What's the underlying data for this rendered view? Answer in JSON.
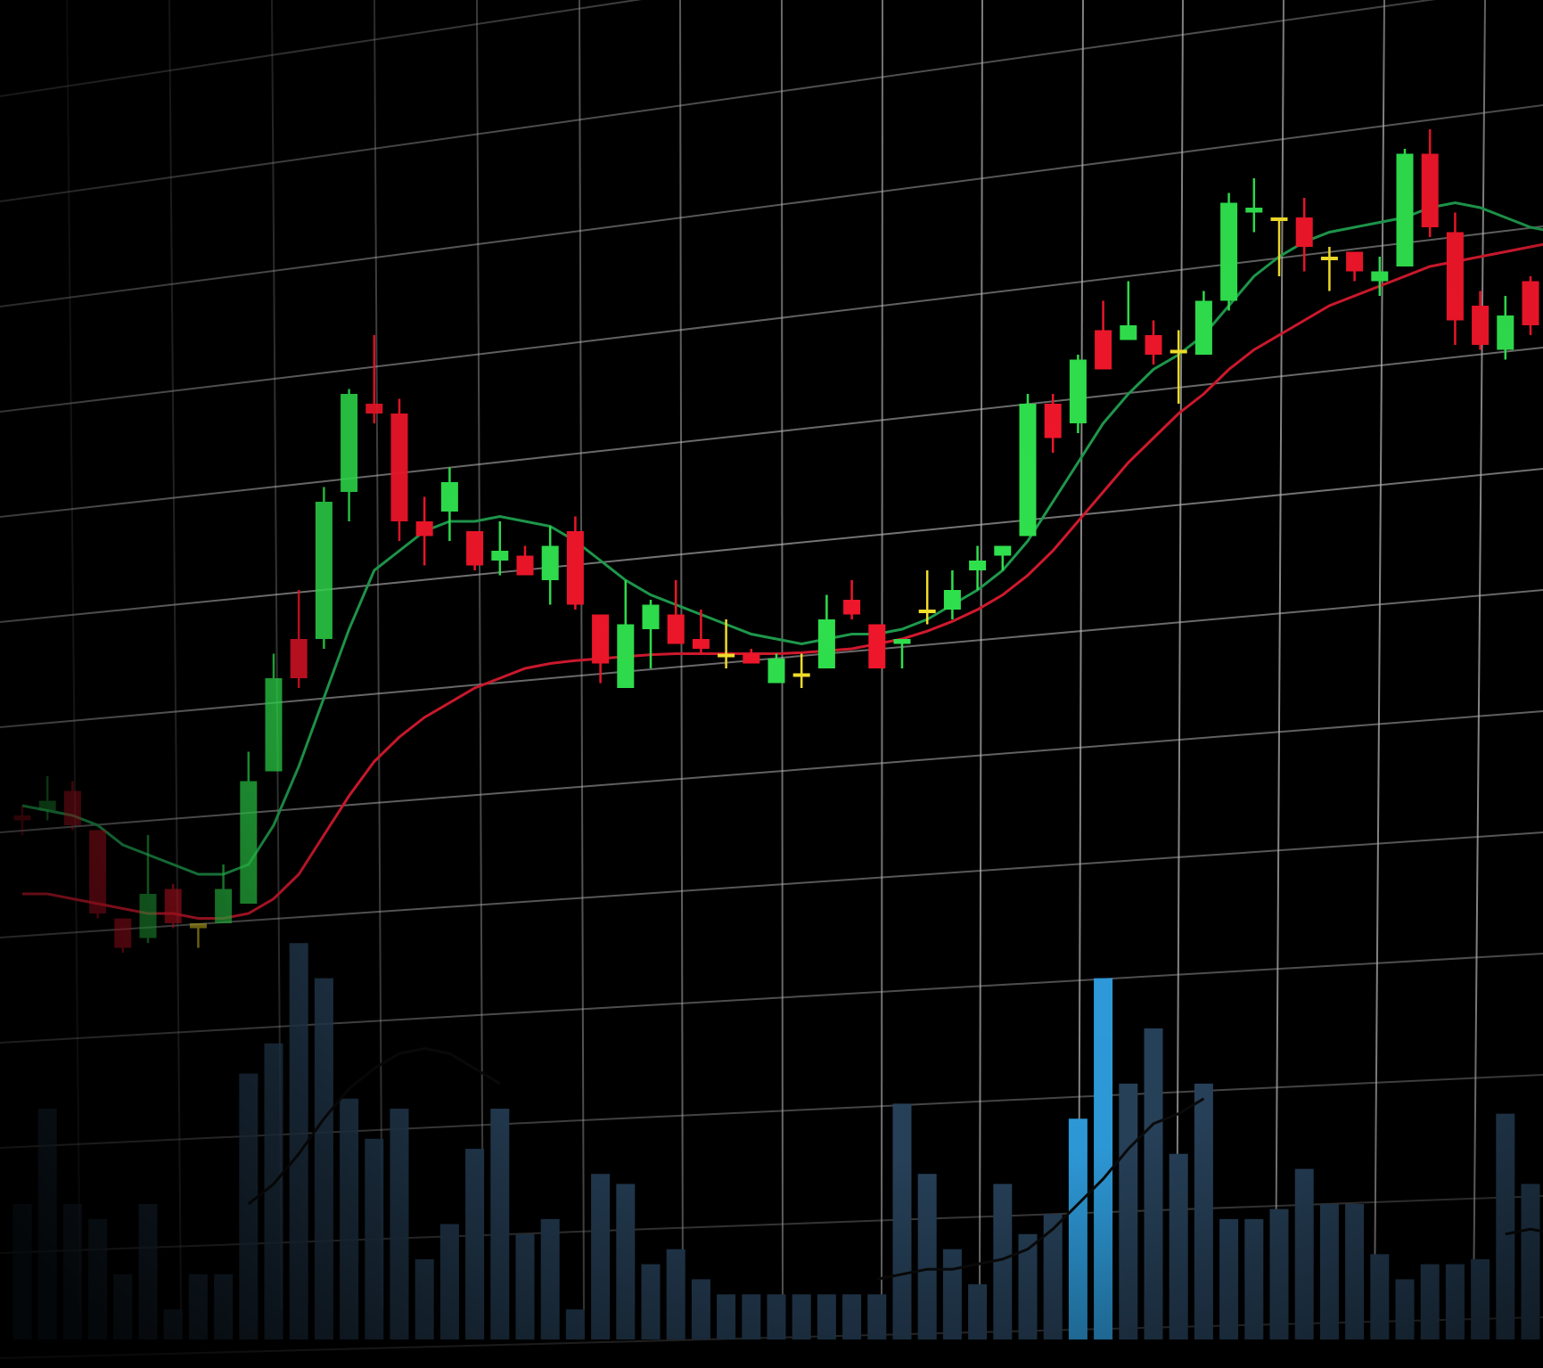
{
  "colors": {
    "background": "#000000",
    "grid": "#b4b4b4",
    "up_bright": "#2fe04d",
    "down_bright": "#f0162a",
    "doji": "#f2df2a",
    "ma_fast": "#1e9a4c",
    "ma_slow": "#d1192d",
    "volume": "#28435c",
    "volume_highlight": "#2f9fe0",
    "volume_ma": "#0b0b0b"
  },
  "chart_data": {
    "type": "candlestick",
    "title": "",
    "xlabel": "",
    "ylabel": "",
    "grid": true,
    "legend": "none",
    "price_range": [
      0,
      100
    ],
    "volume_range": [
      0,
      100
    ],
    "x": [
      1,
      2,
      3,
      4,
      5,
      6,
      7,
      8,
      9,
      10,
      11,
      12,
      13,
      14,
      15,
      16,
      17,
      18,
      19,
      20,
      21,
      22,
      23,
      24,
      25,
      26,
      27,
      28,
      29,
      30,
      31,
      32,
      33,
      34,
      35,
      36,
      37,
      38,
      39,
      40,
      41,
      42,
      43,
      44,
      45,
      46,
      47,
      48,
      49,
      50,
      51,
      52,
      53,
      54,
      55,
      56,
      57,
      58,
      59,
      60,
      61,
      62
    ],
    "candles": [
      {
        "o": 25.0,
        "h": 26.0,
        "l": 23.0,
        "c": 24.5,
        "kind": "down"
      },
      {
        "o": 25.5,
        "h": 29.0,
        "l": 24.5,
        "c": 26.5,
        "kind": "up"
      },
      {
        "o": 27.5,
        "h": 28.5,
        "l": 23.5,
        "c": 24.0,
        "kind": "down"
      },
      {
        "o": 23.5,
        "h": 23.5,
        "l": 14.5,
        "c": 15.0,
        "kind": "down"
      },
      {
        "o": 14.5,
        "h": 14.5,
        "l": 11.0,
        "c": 11.5,
        "kind": "down"
      },
      {
        "o": 12.5,
        "h": 23.0,
        "l": 12.0,
        "c": 17.0,
        "kind": "up"
      },
      {
        "o": 17.5,
        "h": 18.0,
        "l": 13.5,
        "c": 14.0,
        "kind": "down"
      },
      {
        "o": 14.0,
        "h": 14.0,
        "l": 11.5,
        "c": 13.5,
        "kind": "doji"
      },
      {
        "o": 14.0,
        "h": 20.0,
        "l": 14.0,
        "c": 17.5,
        "kind": "up"
      },
      {
        "o": 16.0,
        "h": 31.5,
        "l": 16.0,
        "c": 28.5,
        "kind": "up"
      },
      {
        "o": 29.5,
        "h": 41.5,
        "l": 29.5,
        "c": 39.0,
        "kind": "up"
      },
      {
        "o": 43.0,
        "h": 48.0,
        "l": 38.0,
        "c": 39.0,
        "kind": "down"
      },
      {
        "o": 43.0,
        "h": 58.5,
        "l": 42.0,
        "c": 57.0,
        "kind": "up"
      },
      {
        "o": 58.0,
        "h": 68.5,
        "l": 55.0,
        "c": 68.0,
        "kind": "up"
      },
      {
        "o": 67.0,
        "h": 74.0,
        "l": 65.0,
        "c": 66.0,
        "kind": "down"
      },
      {
        "o": 66.0,
        "h": 67.5,
        "l": 53.0,
        "c": 55.0,
        "kind": "down"
      },
      {
        "o": 55.0,
        "h": 57.5,
        "l": 50.5,
        "c": 53.5,
        "kind": "down"
      },
      {
        "o": 56.0,
        "h": 60.5,
        "l": 53.0,
        "c": 59.0,
        "kind": "up"
      },
      {
        "o": 54.0,
        "h": 54.0,
        "l": 50.0,
        "c": 50.5,
        "kind": "down"
      },
      {
        "o": 51.0,
        "h": 55.0,
        "l": 49.5,
        "c": 52.0,
        "kind": "up"
      },
      {
        "o": 51.5,
        "h": 52.5,
        "l": 49.5,
        "c": 49.5,
        "kind": "down"
      },
      {
        "o": 49.0,
        "h": 54.5,
        "l": 46.5,
        "c": 52.5,
        "kind": "up"
      },
      {
        "o": 54.0,
        "h": 55.5,
        "l": 46.0,
        "c": 46.5,
        "kind": "down"
      },
      {
        "o": 45.5,
        "h": 45.5,
        "l": 38.5,
        "c": 40.5,
        "kind": "down"
      },
      {
        "o": 38.0,
        "h": 49.0,
        "l": 38.0,
        "c": 44.5,
        "kind": "up"
      },
      {
        "o": 44.0,
        "h": 47.0,
        "l": 40.0,
        "c": 46.5,
        "kind": "up"
      },
      {
        "o": 45.5,
        "h": 49.0,
        "l": 42.5,
        "c": 42.5,
        "kind": "down"
      },
      {
        "o": 43.0,
        "h": 46.0,
        "l": 41.5,
        "c": 42.0,
        "kind": "down"
      },
      {
        "o": 41.5,
        "h": 45.0,
        "l": 40.0,
        "c": 41.5,
        "kind": "doji"
      },
      {
        "o": 41.5,
        "h": 42.0,
        "l": 40.5,
        "c": 40.5,
        "kind": "down"
      },
      {
        "o": 38.5,
        "h": 41.5,
        "l": 38.5,
        "c": 41.0,
        "kind": "up"
      },
      {
        "o": 39.5,
        "h": 41.5,
        "l": 38.0,
        "c": 39.5,
        "kind": "doji"
      },
      {
        "o": 40.0,
        "h": 47.5,
        "l": 40.0,
        "c": 45.0,
        "kind": "up"
      },
      {
        "o": 47.0,
        "h": 49.0,
        "l": 45.0,
        "c": 45.5,
        "kind": "down"
      },
      {
        "o": 44.5,
        "h": 44.5,
        "l": 40.0,
        "c": 40.0,
        "kind": "down"
      },
      {
        "o": 42.5,
        "h": 43.0,
        "l": 40.0,
        "c": 43.0,
        "kind": "up"
      },
      {
        "o": 46.0,
        "h": 50.0,
        "l": 44.5,
        "c": 46.0,
        "kind": "doji"
      },
      {
        "o": 46.0,
        "h": 50.0,
        "l": 45.0,
        "c": 48.0,
        "kind": "up"
      },
      {
        "o": 50.0,
        "h": 52.5,
        "l": 48.0,
        "c": 51.0,
        "kind": "up"
      },
      {
        "o": 51.5,
        "h": 52.5,
        "l": 50.0,
        "c": 52.5,
        "kind": "up"
      },
      {
        "o": 53.5,
        "h": 68.0,
        "l": 53.5,
        "c": 67.0,
        "kind": "up"
      },
      {
        "o": 67.0,
        "h": 68.0,
        "l": 62.0,
        "c": 63.5,
        "kind": "down"
      },
      {
        "o": 65.0,
        "h": 72.0,
        "l": 64.0,
        "c": 71.5,
        "kind": "up"
      },
      {
        "o": 74.5,
        "h": 77.5,
        "l": 70.5,
        "c": 70.5,
        "kind": "down"
      },
      {
        "o": 73.5,
        "h": 79.5,
        "l": 73.5,
        "c": 75.0,
        "kind": "up"
      },
      {
        "o": 74.0,
        "h": 75.5,
        "l": 71.0,
        "c": 72.0,
        "kind": "down"
      },
      {
        "o": 72.5,
        "h": 74.5,
        "l": 67.0,
        "c": 72.5,
        "kind": "doji"
      },
      {
        "o": 72.0,
        "h": 78.5,
        "l": 72.0,
        "c": 77.5,
        "kind": "up"
      },
      {
        "o": 77.5,
        "h": 88.5,
        "l": 76.5,
        "c": 87.5,
        "kind": "up"
      },
      {
        "o": 87.0,
        "h": 90.0,
        "l": 84.5,
        "c": 86.5,
        "kind": "up"
      },
      {
        "o": 86.0,
        "h": 86.0,
        "l": 80.0,
        "c": 86.0,
        "kind": "doji"
      },
      {
        "o": 86.0,
        "h": 88.0,
        "l": 80.5,
        "c": 83.0,
        "kind": "down"
      },
      {
        "o": 82.0,
        "h": 83.0,
        "l": 78.5,
        "c": 82.0,
        "kind": "doji"
      },
      {
        "o": 82.5,
        "h": 82.5,
        "l": 79.5,
        "c": 80.5,
        "kind": "down"
      },
      {
        "o": 79.5,
        "h": 82.0,
        "l": 78.0,
        "c": 80.5,
        "kind": "up"
      },
      {
        "o": 81.0,
        "h": 93.0,
        "l": 81.0,
        "c": 92.5,
        "kind": "up"
      },
      {
        "o": 92.5,
        "h": 95.0,
        "l": 84.0,
        "c": 85.0,
        "kind": "down"
      },
      {
        "o": 84.5,
        "h": 86.5,
        "l": 73.0,
        "c": 75.5,
        "kind": "down"
      },
      {
        "o": 77.0,
        "h": 78.5,
        "l": 72.5,
        "c": 73.0,
        "kind": "down"
      },
      {
        "o": 72.5,
        "h": 78.0,
        "l": 71.5,
        "c": 76.0,
        "kind": "up"
      },
      {
        "o": 79.5,
        "h": 80.0,
        "l": 74.0,
        "c": 75.0,
        "kind": "down"
      },
      {
        "o": 76.0,
        "h": 78.0,
        "l": 73.0,
        "c": 77.0,
        "kind": "up"
      }
    ],
    "volume": [
      27,
      46,
      27,
      24,
      13,
      27,
      6,
      13,
      13,
      53,
      59,
      79,
      72,
      48,
      40,
      46,
      16,
      23,
      38,
      46,
      21,
      24,
      6,
      33,
      31,
      15,
      18,
      12,
      9,
      9,
      9,
      9,
      9,
      9,
      9,
      47,
      33,
      18,
      11,
      31,
      21,
      25,
      44,
      72,
      51,
      62,
      37,
      51,
      24,
      24,
      26,
      34,
      27,
      27,
      17,
      12,
      15,
      15,
      16,
      45,
      31,
      16
    ],
    "volume_highlight": [
      false,
      false,
      false,
      false,
      false,
      false,
      false,
      false,
      false,
      false,
      false,
      false,
      false,
      false,
      false,
      false,
      false,
      false,
      false,
      false,
      false,
      false,
      false,
      false,
      false,
      false,
      false,
      false,
      false,
      false,
      false,
      false,
      false,
      false,
      false,
      false,
      false,
      false,
      false,
      false,
      false,
      false,
      true,
      true,
      false,
      false,
      false,
      false,
      false,
      false,
      false,
      false,
      false,
      false,
      false,
      false,
      false,
      false,
      false,
      false,
      false,
      false
    ],
    "ma_fast": [
      26,
      25.5,
      25,
      24,
      22,
      21,
      20,
      19,
      19,
      20,
      24,
      30,
      37,
      44,
      50,
      52,
      54,
      55,
      55,
      55.5,
      55,
      54.5,
      53,
      51,
      49,
      47.5,
      46.5,
      45.5,
      44.5,
      43.5,
      43,
      42.5,
      43,
      43.5,
      43.5,
      44,
      45,
      46.5,
      48,
      50,
      53,
      57,
      61,
      65,
      68,
      70.5,
      72,
      74,
      77,
      80,
      82,
      83.5,
      84.5,
      85,
      85.5,
      86,
      87,
      87.5,
      87,
      86,
      85,
      84.5
    ],
    "ma_slow": [
      17,
      17,
      16.5,
      16,
      15.5,
      15,
      15,
      14.5,
      14.5,
      15,
      16.5,
      19,
      23,
      27,
      30.5,
      33,
      35,
      36.5,
      38,
      39,
      40,
      40.5,
      40.8,
      41,
      41.2,
      41.4,
      41.5,
      41.5,
      41.5,
      41.5,
      41.5,
      41.6,
      41.8,
      42,
      42.5,
      43,
      43.8,
      44.8,
      46,
      47.5,
      49.5,
      52,
      55,
      58,
      61,
      63.5,
      66,
      68,
      70.5,
      72.5,
      74,
      75.5,
      77,
      78,
      79,
      80,
      81,
      81.5,
      82,
      82.5,
      83,
      83.5
    ],
    "volume_ma": [
      null,
      null,
      null,
      null,
      null,
      null,
      null,
      null,
      null,
      27,
      31,
      37,
      44,
      50,
      54,
      57,
      58,
      57,
      54,
      51,
      null,
      null,
      null,
      null,
      null,
      null,
      null,
      null,
      null,
      null,
      null,
      null,
      null,
      null,
      12,
      13,
      14,
      14,
      15,
      16,
      18,
      22,
      27,
      32,
      38,
      43,
      45,
      48,
      null,
      null,
      null,
      null,
      null,
      null,
      null,
      null,
      null,
      null,
      null,
      21,
      22,
      21
    ]
  }
}
